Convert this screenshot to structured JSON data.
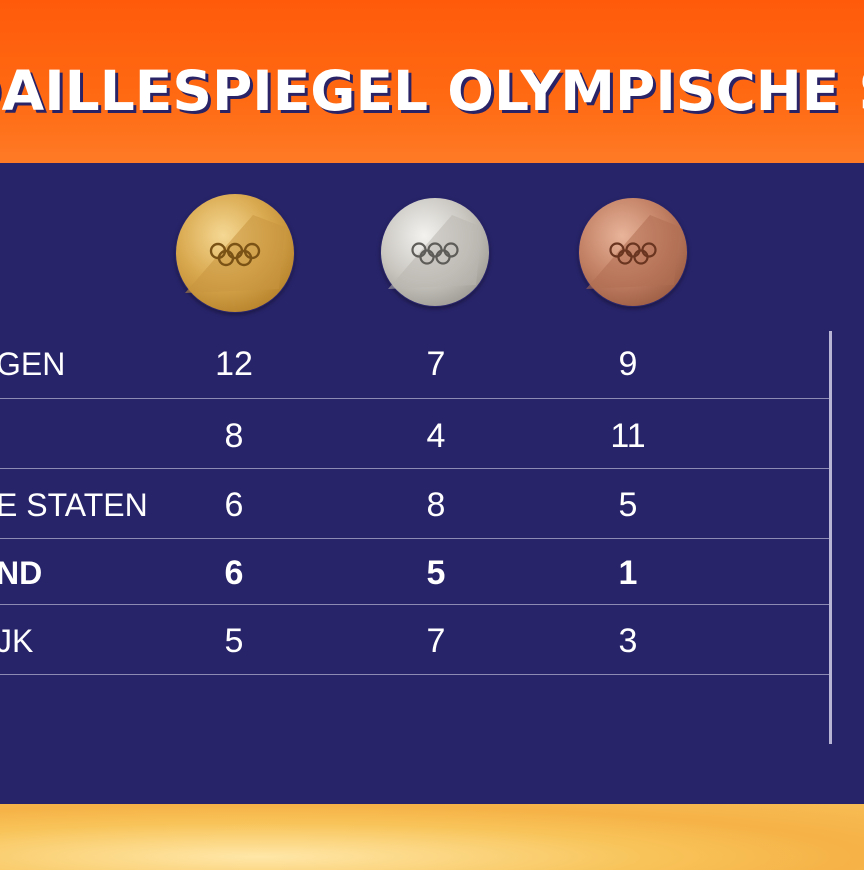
{
  "header": {
    "title": "DAILLESPIEGEL OLYMPISCHE SPEL"
  },
  "medals": {
    "gold": "gold-medal-icon",
    "silver": "silver-medal-icon",
    "bronze": "bronze-medal-icon"
  },
  "colors": {
    "header_orange": "#ff6410",
    "board_navy": "#28246a",
    "bottom_gold": "#f7c058",
    "text": "#ffffff"
  },
  "table": {
    "rows": [
      {
        "country": "GEN",
        "gold": "12",
        "silver": "7",
        "bronze": "9",
        "bold": false
      },
      {
        "country": "",
        "gold": "8",
        "silver": "4",
        "bronze": "11",
        "bold": false
      },
      {
        "country": "E STATEN",
        "gold": "6",
        "silver": "8",
        "bronze": "5",
        "bold": false
      },
      {
        "country": "ND",
        "gold": "6",
        "silver": "5",
        "bronze": "1",
        "bold": true
      },
      {
        "country": "JK",
        "gold": "5",
        "silver": "7",
        "bronze": "3",
        "bold": false
      }
    ]
  }
}
